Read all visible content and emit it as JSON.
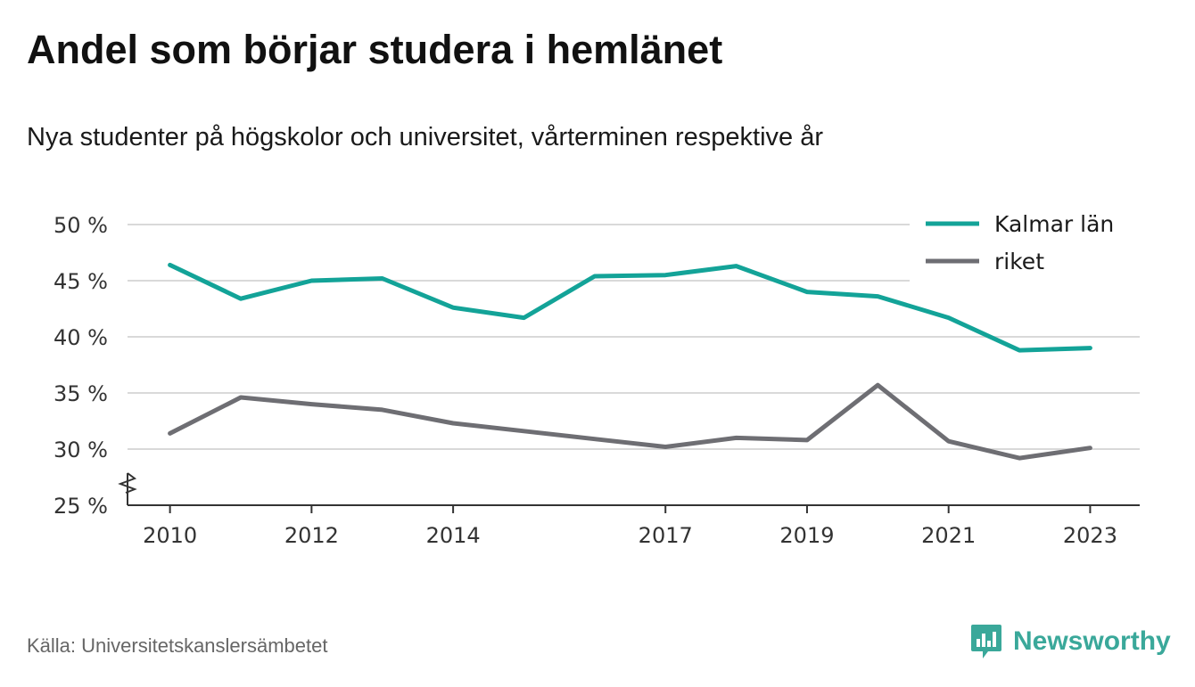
{
  "header": {
    "title": "Andel som börjar studera i hemlänet",
    "subtitle": "Nya studenter på högskolor och universitet, vårterminen respektive år"
  },
  "footer": {
    "source": "Källa: Universitetskanslersämbetet",
    "brand": "Newsworthy",
    "brand_icon": "bar-chart-speech-bubble-icon"
  },
  "colors": {
    "kalmar": "#13a398",
    "riket": "#6e6e73",
    "grid": "#d9d9d9",
    "axis": "#333333",
    "brand": "#3aa89a"
  },
  "chart_data": {
    "type": "line",
    "x": [
      2010,
      2011,
      2012,
      2013,
      2014,
      2015,
      2016,
      2017,
      2018,
      2019,
      2020,
      2021,
      2022,
      2023
    ],
    "series": [
      {
        "name": "Kalmar län",
        "color": "#13a398",
        "values": [
          46.4,
          43.4,
          45.0,
          45.2,
          42.6,
          41.7,
          45.4,
          45.5,
          46.3,
          44.0,
          43.6,
          41.7,
          38.8,
          39.0
        ]
      },
      {
        "name": "riket",
        "color": "#6e6e73",
        "values": [
          31.4,
          34.6,
          34.0,
          33.5,
          32.3,
          31.6,
          30.9,
          30.2,
          31.0,
          30.8,
          35.7,
          30.7,
          29.2,
          30.1
        ]
      }
    ],
    "xticks": [
      "2010",
      "2012",
      "2014",
      "2017",
      "2019",
      "2021",
      "2023"
    ],
    "yticks": [
      25,
      30,
      35,
      40,
      45,
      50
    ],
    "ytick_labels": [
      "25 %",
      "30 %",
      "35 %",
      "40 %",
      "45 %",
      "50 %"
    ],
    "ylim": [
      25,
      50
    ],
    "xlim": [
      2009.4,
      2023.7
    ],
    "y_axis_break": true,
    "grid": true,
    "legend": "top-right"
  }
}
